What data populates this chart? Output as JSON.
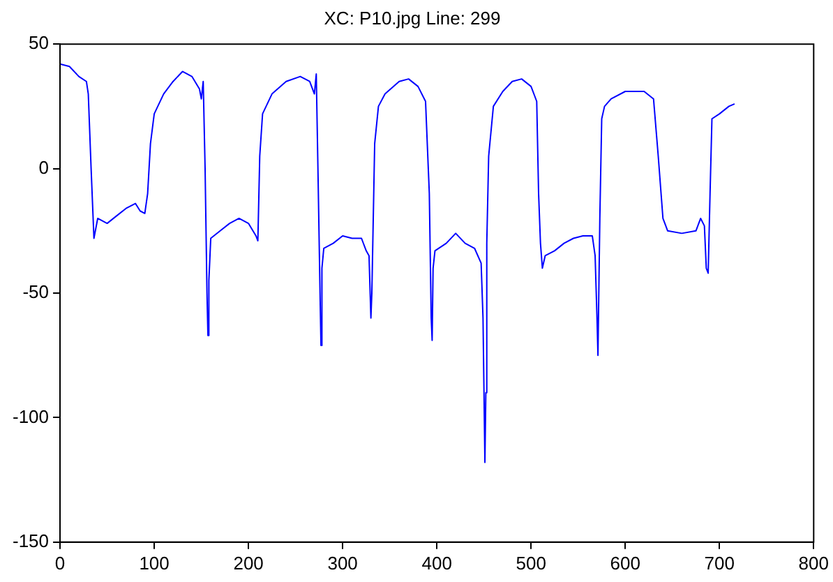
{
  "chart_data": {
    "type": "line",
    "title": "XC: P10.jpg Line: 299",
    "x": [
      0,
      10,
      20,
      28,
      30,
      33,
      36,
      40,
      50,
      60,
      70,
      80,
      85,
      90,
      93,
      96,
      100,
      110,
      120,
      130,
      140,
      148,
      150,
      152,
      154,
      156,
      157,
      158,
      160,
      170,
      180,
      190,
      200,
      208,
      210,
      212,
      215,
      225,
      240,
      255,
      265,
      270,
      272,
      274,
      276,
      277,
      278,
      280,
      290,
      300,
      310,
      320,
      325,
      328,
      330,
      331,
      332,
      334,
      338,
      345,
      360,
      370,
      380,
      388,
      392,
      394,
      395,
      396,
      398,
      410,
      420,
      430,
      440,
      447,
      449,
      451,
      452,
      453,
      455,
      460,
      470,
      480,
      490,
      500,
      506,
      508,
      510,
      512,
      515,
      525,
      535,
      545,
      555,
      565,
      568,
      570,
      571,
      573,
      575,
      578,
      585,
      600,
      620,
      630,
      635,
      640,
      645,
      660,
      675,
      680,
      684,
      686,
      688,
      690,
      692,
      700,
      710,
      716
    ],
    "series": [
      {
        "color": "#0000ff",
        "values": [
          42,
          41,
          37,
          35,
          30,
          0,
          -28,
          -20,
          -22,
          -19,
          -16,
          -14,
          -17,
          -18,
          -10,
          10,
          22,
          30,
          35,
          39,
          37,
          32,
          28,
          35,
          0,
          -50,
          -67,
          -45,
          -28,
          -25,
          -22,
          -20,
          -22,
          -27,
          -29,
          5,
          22,
          30,
          35,
          37,
          35,
          30,
          38,
          -5,
          -50,
          -71,
          -40,
          -32,
          -30,
          -27,
          -28,
          -28,
          -33,
          -35,
          -60,
          -50,
          -30,
          10,
          25,
          30,
          35,
          36,
          33,
          27,
          -10,
          -60,
          -69,
          -40,
          -33,
          -30,
          -26,
          -30,
          -32,
          -38,
          -60,
          -118,
          -90,
          -30,
          5,
          25,
          31,
          35,
          36,
          33,
          27,
          -10,
          -30,
          -40,
          -35,
          -33,
          -30,
          -28,
          -27,
          -27,
          -35,
          -60,
          -75,
          -20,
          20,
          25,
          28,
          31,
          31,
          28,
          5,
          -20,
          -25,
          -26,
          -25,
          -20,
          -23,
          -40,
          -42,
          -10,
          20,
          22,
          25,
          26
        ]
      }
    ],
    "xlim": [
      0,
      800
    ],
    "xticks": [
      0,
      100,
      200,
      300,
      400,
      500,
      600,
      700,
      800
    ],
    "ylim": [
      -150,
      50
    ],
    "yticks": [
      -150,
      -100,
      -50,
      0,
      50
    ],
    "grid": false,
    "legend": false,
    "marker": "none",
    "line_style": "solid"
  }
}
